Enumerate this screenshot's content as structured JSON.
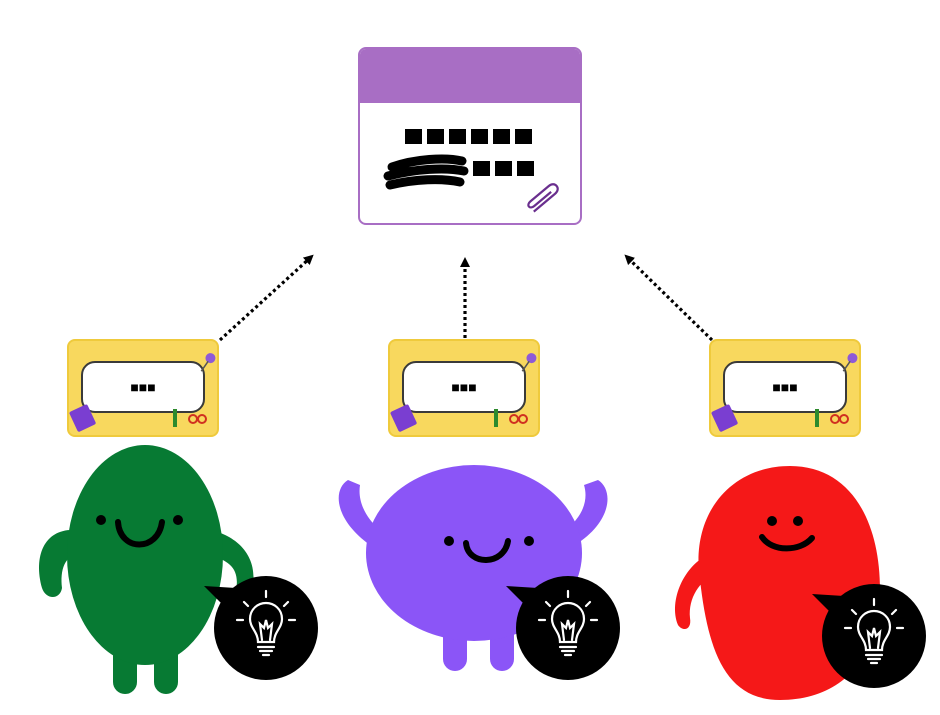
{
  "board": {
    "header_color": "#a86ec4",
    "line1": "■■■■■■",
    "line2": "■■■",
    "icon": "paperclip-icon"
  },
  "cards": [
    {
      "text": "■■■",
      "owner": "green-character"
    },
    {
      "text": "■■■",
      "owner": "purple-character"
    },
    {
      "text": "■■■",
      "owner": "red-character"
    }
  ],
  "characters": [
    {
      "name": "green",
      "color": "#077a33",
      "bubble_icon": "lightbulb-icon"
    },
    {
      "name": "purple",
      "color": "#8b55f7",
      "bubble_icon": "lightbulb-icon"
    },
    {
      "name": "red",
      "color": "#f51818",
      "bubble_icon": "lightbulb-icon"
    }
  ]
}
